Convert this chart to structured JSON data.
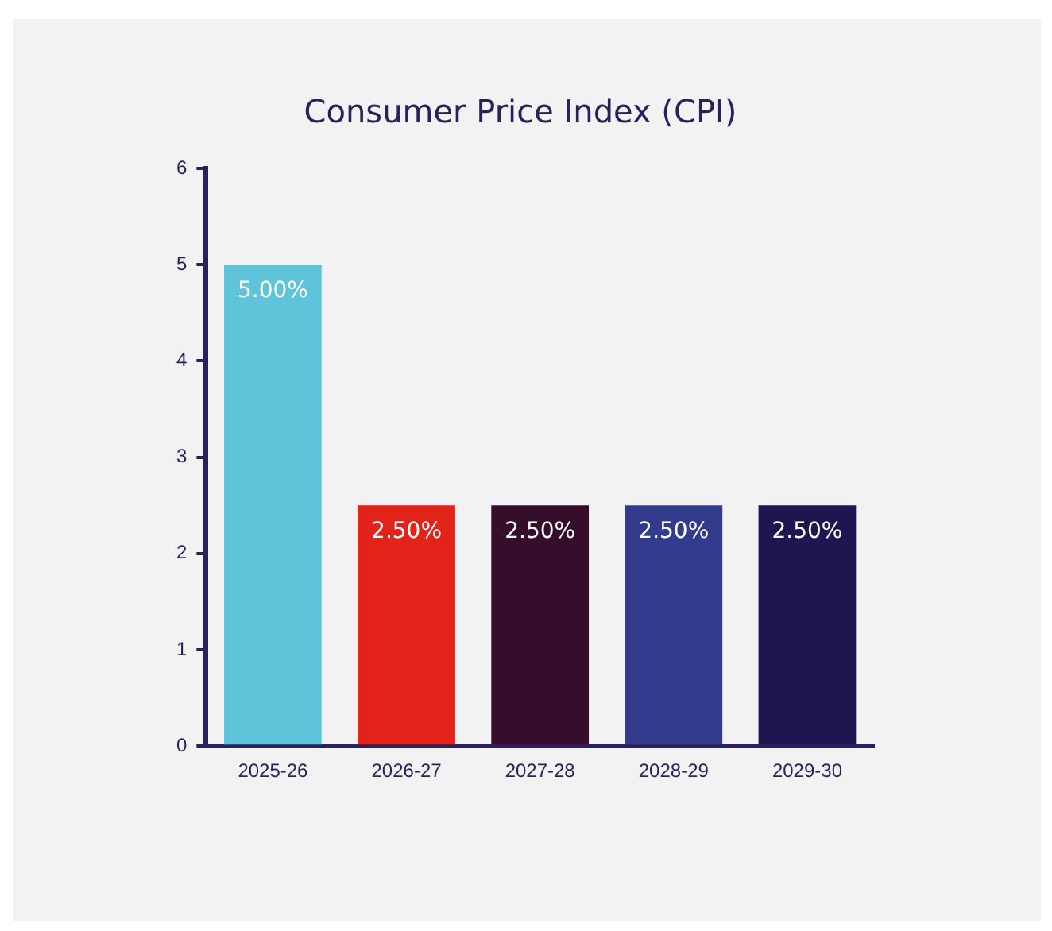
{
  "chart_data": {
    "type": "bar",
    "title": "Consumer Price Index (CPI)",
    "categories": [
      "2025-26",
      "2026-27",
      "2027-28",
      "2028-29",
      "2029-30"
    ],
    "values": [
      5.0,
      2.5,
      2.5,
      2.5,
      2.5
    ],
    "colors": [
      "#5fc4d9",
      "#e2231a",
      "#360d2b",
      "#333b8c",
      "#211551"
    ],
    "value_labels": [
      "5.00%",
      "2.50%",
      "2.50%",
      "2.50%",
      "2.50%"
    ],
    "ylim": [
      0,
      6
    ],
    "yticks": [
      0,
      1,
      2,
      3,
      4,
      5,
      6
    ],
    "grid": false,
    "legend": false
  }
}
